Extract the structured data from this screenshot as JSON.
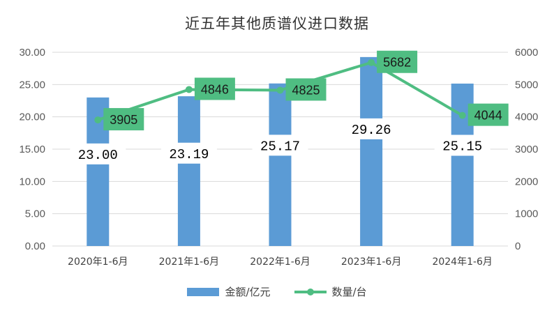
{
  "chart_data": {
    "type": "bar",
    "title": "近五年其他质谱仪进口数据",
    "categories": [
      "2020年1-6月",
      "2021年1-6月",
      "2022年1-6月",
      "2023年1-6月",
      "2024年1-6月"
    ],
    "series": [
      {
        "name": "金额/亿元",
        "type": "bar",
        "axis": "left",
        "values": [
          23.0,
          23.19,
          25.17,
          29.26,
          25.15
        ],
        "labels": [
          "23.00",
          "23.19",
          "25.17",
          "29.26",
          "25.15"
        ],
        "color": "#5b9bd5"
      },
      {
        "name": "数量/台",
        "type": "line",
        "axis": "right",
        "values": [
          3905,
          4846,
          4825,
          5682,
          4044
        ],
        "labels": [
          "3905",
          "4846",
          "4825",
          "5682",
          "4044"
        ],
        "color": "#4fbd82"
      }
    ],
    "y_left": {
      "min": 0,
      "max": 30,
      "ticks": [
        "0.00",
        "5.00",
        "10.00",
        "15.00",
        "20.00",
        "25.00",
        "30.00"
      ]
    },
    "y_right": {
      "min": 0,
      "max": 6000,
      "ticks": [
        "0",
        "1000",
        "2000",
        "3000",
        "4000",
        "5000",
        "6000"
      ]
    },
    "grid": "horizontal",
    "legend_position": "bottom"
  }
}
